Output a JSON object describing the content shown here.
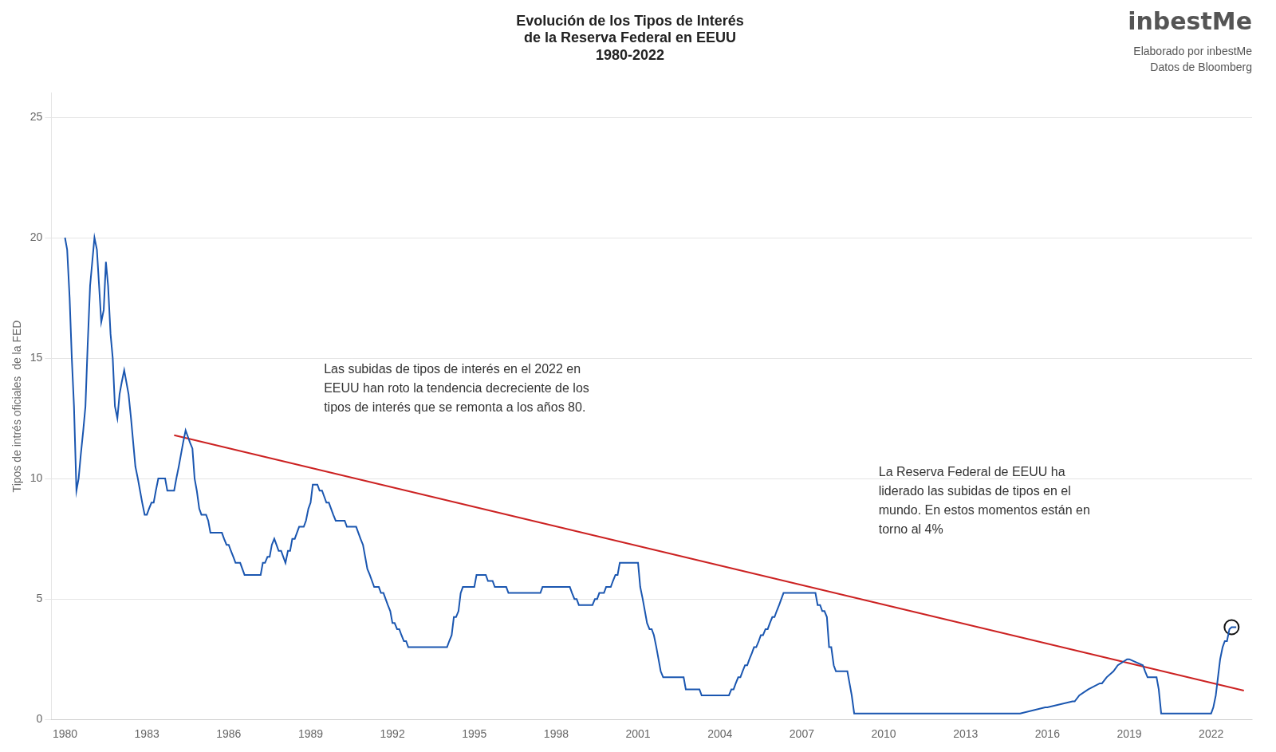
{
  "chart_data": {
    "type": "line",
    "title": [
      "Evolución de los Tipos de Interés",
      "de la Reserva Federal en EEUU",
      "1980-2022"
    ],
    "ylabel": "Tipos de intrés oficiales  de la FED",
    "annotations": [
      "Las subidas de tipos de interés en el 2022 en\nEEUU han roto la tendencia decreciente de los\ntipos de interés que se remonta a los años 80.",
      "La Reserva Federal de EEUU ha\nliderado las subidas de tipos en el\nmundo. En estos momentos están en\ntorno al 4%"
    ],
    "logo": "inbestMe",
    "credits": [
      "Elaborado por inbestMe",
      "Datos de Bloomberg"
    ],
    "xlim": [
      1979.5,
      2023.5
    ],
    "ylim": [
      0,
      26
    ],
    "xticks": [
      1980,
      1983,
      1986,
      1989,
      1992,
      1995,
      1998,
      2001,
      2004,
      2007,
      2010,
      2013,
      2016,
      2019,
      2022
    ],
    "yticks": [
      0,
      5,
      10,
      15,
      20,
      25
    ],
    "grid": "y",
    "series": [
      {
        "color": "#1a56b0",
        "x": [
          1980.0,
          1980.08,
          1980.17,
          1980.25,
          1980.33,
          1980.42,
          1980.5,
          1980.58,
          1980.67,
          1980.75,
          1980.83,
          1980.92,
          1981.0,
          1981.08,
          1981.17,
          1981.25,
          1981.33,
          1981.42,
          1981.5,
          1981.58,
          1981.67,
          1981.75,
          1981.83,
          1981.92,
          1982.0,
          1982.08,
          1982.17,
          1982.25,
          1982.33,
          1982.42,
          1982.5,
          1982.58,
          1982.67,
          1982.75,
          1982.83,
          1982.92,
          1983.0,
          1983.08,
          1983.17,
          1983.25,
          1983.33,
          1983.42,
          1983.5,
          1983.58,
          1983.67,
          1983.75,
          1983.83,
          1983.92,
          1984.0,
          1984.08,
          1984.17,
          1984.25,
          1984.33,
          1984.42,
          1984.5,
          1984.58,
          1984.67,
          1984.75,
          1984.83,
          1984.92,
          1985.0,
          1985.08,
          1985.17,
          1985.25,
          1985.33,
          1985.42,
          1985.5,
          1985.58,
          1985.67,
          1985.75,
          1985.83,
          1985.92,
          1986.0,
          1986.08,
          1986.17,
          1986.25,
          1986.33,
          1986.42,
          1986.5,
          1986.58,
          1986.67,
          1986.75,
          1986.83,
          1986.92,
          1987.0,
          1987.08,
          1987.17,
          1987.25,
          1987.33,
          1987.42,
          1987.5,
          1987.58,
          1987.67,
          1987.75,
          1987.83,
          1987.92,
          1988.0,
          1988.08,
          1988.17,
          1988.25,
          1988.33,
          1988.42,
          1988.5,
          1988.58,
          1988.67,
          1988.75,
          1988.83,
          1988.92,
          1989.0,
          1989.08,
          1989.17,
          1989.25,
          1989.33,
          1989.42,
          1989.5,
          1989.58,
          1989.67,
          1989.75,
          1989.83,
          1989.92,
          1990.0,
          1990.08,
          1990.17,
          1990.25,
          1990.33,
          1990.42,
          1990.5,
          1990.58,
          1990.67,
          1990.75,
          1990.83,
          1990.92,
          1991.0,
          1991.08,
          1991.17,
          1991.25,
          1991.33,
          1991.42,
          1991.5,
          1991.58,
          1991.67,
          1991.75,
          1991.83,
          1991.92,
          1992.0,
          1992.08,
          1992.17,
          1992.25,
          1992.33,
          1992.42,
          1992.5,
          1992.58,
          1992.67,
          1992.75,
          1992.83,
          1992.92,
          1993.0,
          1993.08,
          1993.17,
          1993.25,
          1993.33,
          1993.42,
          1993.5,
          1993.58,
          1993.67,
          1993.75,
          1993.83,
          1993.92,
          1994.0,
          1994.08,
          1994.17,
          1994.25,
          1994.33,
          1994.42,
          1994.5,
          1994.58,
          1994.67,
          1994.75,
          1994.83,
          1994.92,
          1995.0,
          1995.08,
          1995.17,
          1995.25,
          1995.33,
          1995.42,
          1995.5,
          1995.58,
          1995.67,
          1995.75,
          1995.83,
          1995.92,
          1996.0,
          1996.08,
          1996.17,
          1996.25,
          1996.33,
          1996.42,
          1996.5,
          1996.58,
          1996.67,
          1996.75,
          1996.83,
          1996.92,
          1997.0,
          1997.08,
          1997.17,
          1997.25,
          1997.33,
          1997.42,
          1997.5,
          1997.58,
          1997.67,
          1997.75,
          1997.83,
          1997.92,
          1998.0,
          1998.08,
          1998.17,
          1998.25,
          1998.33,
          1998.42,
          1998.5,
          1998.58,
          1998.67,
          1998.75,
          1998.83,
          1998.92,
          1999.0,
          1999.08,
          1999.17,
          1999.25,
          1999.33,
          1999.42,
          1999.5,
          1999.58,
          1999.67,
          1999.75,
          1999.83,
          1999.92,
          2000.0,
          2000.08,
          2000.17,
          2000.25,
          2000.33,
          2000.42,
          2000.5,
          2000.58,
          2000.67,
          2000.75,
          2000.83,
          2000.92,
          2001.0,
          2001.08,
          2001.17,
          2001.25,
          2001.33,
          2001.42,
          2001.5,
          2001.58,
          2001.67,
          2001.75,
          2001.83,
          2001.92,
          2002.0,
          2002.08,
          2002.17,
          2002.25,
          2002.33,
          2002.42,
          2002.5,
          2002.58,
          2002.67,
          2002.75,
          2002.83,
          2002.92,
          2003.0,
          2003.08,
          2003.17,
          2003.25,
          2003.33,
          2003.42,
          2003.5,
          2003.58,
          2003.67,
          2003.75,
          2003.83,
          2003.92,
          2004.0,
          2004.08,
          2004.17,
          2004.25,
          2004.33,
          2004.42,
          2004.5,
          2004.58,
          2004.67,
          2004.75,
          2004.83,
          2004.92,
          2005.0,
          2005.08,
          2005.17,
          2005.25,
          2005.33,
          2005.42,
          2005.5,
          2005.58,
          2005.67,
          2005.75,
          2005.83,
          2005.92,
          2006.0,
          2006.08,
          2006.17,
          2006.25,
          2006.33,
          2006.42,
          2006.5,
          2006.58,
          2006.67,
          2006.75,
          2006.83,
          2006.92,
          2007.0,
          2007.08,
          2007.17,
          2007.25,
          2007.33,
          2007.42,
          2007.5,
          2007.58,
          2007.67,
          2007.75,
          2007.83,
          2007.92,
          2008.0,
          2008.08,
          2008.17,
          2008.25,
          2008.33,
          2008.42,
          2008.5,
          2008.58,
          2008.67,
          2008.75,
          2008.83,
          2008.92,
          2009.0,
          2010.0,
          2011.0,
          2012.0,
          2013.0,
          2014.0,
          2015.0,
          2015.92,
          2016.0,
          2016.92,
          2017.0,
          2017.17,
          2017.5,
          2017.92,
          2018.0,
          2018.17,
          2018.42,
          2018.58,
          2018.92,
          2019.0,
          2019.5,
          2019.58,
          2019.67,
          2019.75,
          2019.92,
          2020.0,
          2020.08,
          2020.17,
          2020.25,
          2021.0,
          2021.92,
          2022.0,
          2022.08,
          2022.17,
          2022.25,
          2022.33,
          2022.42,
          2022.5,
          2022.58,
          2022.67,
          2022.75,
          2022.92
        ],
        "values": [
          20.0,
          19.5,
          17.5,
          15.0,
          13.0,
          9.5,
          10.0,
          11.0,
          12.0,
          13.0,
          15.5,
          18.0,
          19.0,
          20.0,
          19.5,
          18.0,
          16.5,
          17.0,
          19.0,
          18.0,
          16.0,
          15.0,
          13.0,
          12.5,
          13.5,
          14.0,
          14.5,
          14.0,
          13.5,
          12.5,
          11.5,
          10.5,
          10.0,
          9.5,
          9.0,
          8.5,
          8.5,
          8.75,
          9.0,
          9.0,
          9.5,
          10.0,
          10.0,
          10.0,
          10.0,
          9.5,
          9.5,
          9.5,
          9.5,
          10.0,
          10.5,
          11.0,
          11.5,
          12.0,
          11.75,
          11.5,
          11.25,
          10.0,
          9.5,
          8.75,
          8.5,
          8.5,
          8.5,
          8.25,
          7.75,
          7.75,
          7.75,
          7.75,
          7.75,
          7.75,
          7.5,
          7.25,
          7.25,
          7.0,
          6.75,
          6.5,
          6.5,
          6.5,
          6.25,
          6.0,
          6.0,
          6.0,
          6.0,
          6.0,
          6.0,
          6.0,
          6.0,
          6.5,
          6.5,
          6.75,
          6.75,
          7.25,
          7.5,
          7.25,
          7.0,
          7.0,
          6.75,
          6.5,
          7.0,
          7.0,
          7.5,
          7.5,
          7.75,
          8.0,
          8.0,
          8.0,
          8.25,
          8.75,
          9.0,
          9.75,
          9.75,
          9.75,
          9.5,
          9.5,
          9.25,
          9.0,
          9.0,
          8.75,
          8.5,
          8.25,
          8.25,
          8.25,
          8.25,
          8.25,
          8.0,
          8.0,
          8.0,
          8.0,
          8.0,
          7.75,
          7.5,
          7.25,
          6.75,
          6.25,
          6.0,
          5.75,
          5.5,
          5.5,
          5.5,
          5.25,
          5.25,
          5.0,
          4.75,
          4.5,
          4.0,
          4.0,
          3.75,
          3.75,
          3.5,
          3.25,
          3.25,
          3.0,
          3.0,
          3.0,
          3.0,
          3.0,
          3.0,
          3.0,
          3.0,
          3.0,
          3.0,
          3.0,
          3.0,
          3.0,
          3.0,
          3.0,
          3.0,
          3.0,
          3.0,
          3.25,
          3.5,
          4.25,
          4.25,
          4.5,
          5.25,
          5.5,
          5.5,
          5.5,
          5.5,
          5.5,
          5.5,
          6.0,
          6.0,
          6.0,
          6.0,
          6.0,
          5.75,
          5.75,
          5.75,
          5.5,
          5.5,
          5.5,
          5.5,
          5.5,
          5.5,
          5.25,
          5.25,
          5.25,
          5.25,
          5.25,
          5.25,
          5.25,
          5.25,
          5.25,
          5.25,
          5.25,
          5.25,
          5.25,
          5.25,
          5.25,
          5.5,
          5.5,
          5.5,
          5.5,
          5.5,
          5.5,
          5.5,
          5.5,
          5.5,
          5.5,
          5.5,
          5.5,
          5.5,
          5.25,
          5.0,
          5.0,
          4.75,
          4.75,
          4.75,
          4.75,
          4.75,
          4.75,
          4.75,
          5.0,
          5.0,
          5.25,
          5.25,
          5.25,
          5.5,
          5.5,
          5.5,
          5.75,
          6.0,
          6.0,
          6.5,
          6.5,
          6.5,
          6.5,
          6.5,
          6.5,
          6.5,
          6.5,
          6.5,
          5.5,
          5.0,
          4.5,
          4.0,
          3.75,
          3.75,
          3.5,
          3.0,
          2.5,
          2.0,
          1.75,
          1.75,
          1.75,
          1.75,
          1.75,
          1.75,
          1.75,
          1.75,
          1.75,
          1.75,
          1.25,
          1.25,
          1.25,
          1.25,
          1.25,
          1.25,
          1.25,
          1.0,
          1.0,
          1.0,
          1.0,
          1.0,
          1.0,
          1.0,
          1.0,
          1.0,
          1.0,
          1.0,
          1.0,
          1.0,
          1.25,
          1.25,
          1.5,
          1.75,
          1.75,
          2.0,
          2.25,
          2.25,
          2.5,
          2.75,
          3.0,
          3.0,
          3.25,
          3.5,
          3.5,
          3.75,
          3.75,
          4.0,
          4.25,
          4.25,
          4.5,
          4.75,
          5.0,
          5.25,
          5.25,
          5.25,
          5.25,
          5.25,
          5.25,
          5.25,
          5.25,
          5.25,
          5.25,
          5.25,
          5.25,
          5.25,
          5.25,
          5.25,
          4.75,
          4.75,
          4.5,
          4.5,
          4.25,
          3.0,
          3.0,
          2.25,
          2.0,
          2.0,
          2.0,
          2.0,
          2.0,
          2.0,
          1.5,
          1.0,
          0.25,
          0.25,
          0.25,
          0.25,
          0.25,
          0.25,
          0.25,
          0.25,
          0.5,
          0.5,
          0.75,
          0.75,
          1.0,
          1.25,
          1.5,
          1.5,
          1.75,
          2.0,
          2.25,
          2.5,
          2.5,
          2.25,
          2.0,
          1.75,
          1.75,
          1.75,
          1.75,
          1.25,
          0.25,
          0.25,
          0.25,
          0.25,
          0.25,
          0.5,
          1.0,
          1.75,
          2.5,
          3.0,
          3.25,
          3.25,
          3.75,
          3.83,
          3.83
        ]
      },
      {
        "color": "#cc2222",
        "x": [
          1984.0,
          2023.2
        ],
        "values": [
          11.8,
          1.2
        ]
      },
      {
        "color": "#111111",
        "x": [
          2022.75
        ],
        "values": [
          3.83
        ],
        "marker": "circle",
        "line_style": "none"
      }
    ]
  }
}
